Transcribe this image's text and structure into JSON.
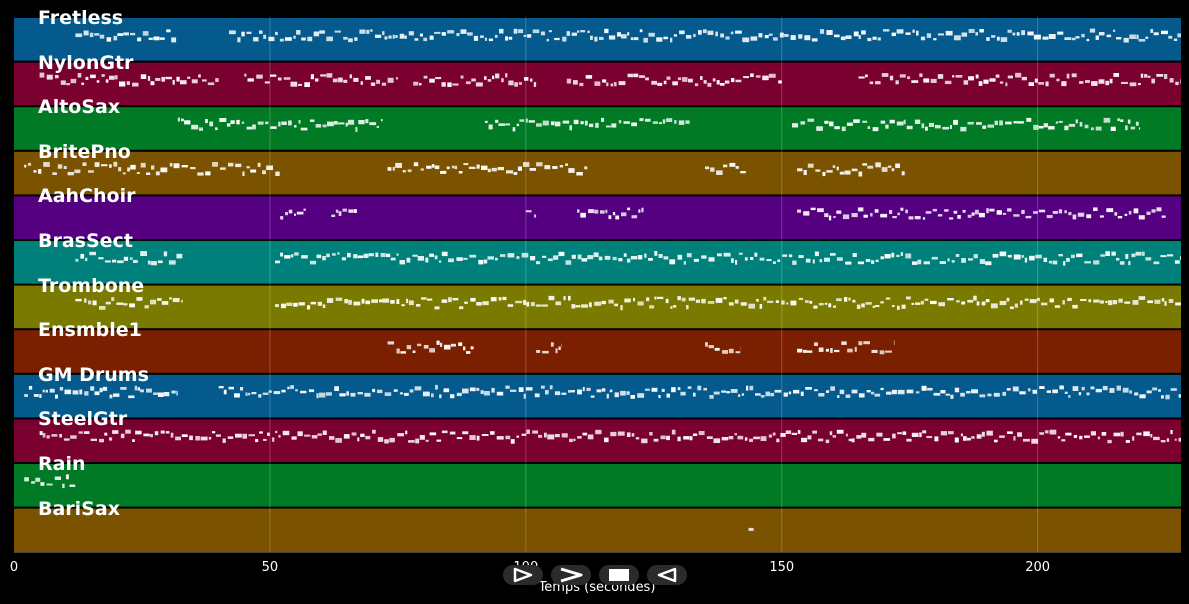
{
  "player": {
    "xlabel": "Temps (secondes)",
    "xticks": [
      0,
      50,
      100,
      150,
      200
    ],
    "xlim": [
      0,
      228
    ],
    "controls": [
      {
        "name": "play-button",
        "icon": "play-icon"
      },
      {
        "name": "fast-forward-button",
        "icon": "fast-forward-icon"
      },
      {
        "name": "stop-button",
        "icon": "stop-icon"
      },
      {
        "name": "rewind-button",
        "icon": "rewind-icon"
      }
    ]
  },
  "tracks": [
    {
      "name": "Fretless",
      "color": "#045a8d",
      "segments": [
        [
          12,
          32
        ],
        [
          42,
          228
        ]
      ]
    },
    {
      "name": "NylonGtr",
      "color": "#7a0030",
      "segments": [
        [
          5,
          40
        ],
        [
          45,
          75
        ],
        [
          78,
          102
        ],
        [
          108,
          150
        ],
        [
          165,
          228
        ]
      ]
    },
    {
      "name": "AltoSax",
      "color": "#007a25",
      "segments": [
        [
          32,
          72
        ],
        [
          92,
          132
        ],
        [
          152,
          220
        ]
      ]
    },
    {
      "name": "BritePno",
      "color": "#7a5200",
      "segments": [
        [
          2,
          52
        ],
        [
          73,
          112
        ],
        [
          135,
          143
        ],
        [
          153,
          174
        ]
      ]
    },
    {
      "name": "AahChoir",
      "color": "#540080",
      "segments": [
        [
          52,
          57
        ],
        [
          62,
          67
        ],
        [
          100,
          102
        ],
        [
          110,
          123
        ],
        [
          153,
          225
        ]
      ]
    },
    {
      "name": "BrasSect",
      "color": "#00807a",
      "segments": [
        [
          12,
          33
        ],
        [
          51,
          112
        ],
        [
          112,
          228
        ]
      ]
    },
    {
      "name": "Trombone",
      "color": "#7a7a00",
      "segments": [
        [
          12,
          33
        ],
        [
          51,
          228
        ]
      ]
    },
    {
      "name": "Ensmble1",
      "color": "#7a2000",
      "segments": [
        [
          73,
          90
        ],
        [
          102,
          107
        ],
        [
          135,
          142
        ],
        [
          153,
          172
        ]
      ]
    },
    {
      "name": "GM Drums",
      "color": "#045a8d",
      "segments": [
        [
          2,
          32
        ],
        [
          40,
          228
        ]
      ]
    },
    {
      "name": "SteelGtr",
      "color": "#7a0030",
      "segments": [
        [
          5,
          228
        ]
      ]
    },
    {
      "name": "Rain",
      "color": "#007a25",
      "segments": [
        [
          2,
          12
        ]
      ]
    },
    {
      "name": "BariSax",
      "color": "#7a5200",
      "segments": [
        [
          143.5,
          144.5
        ]
      ]
    }
  ]
}
